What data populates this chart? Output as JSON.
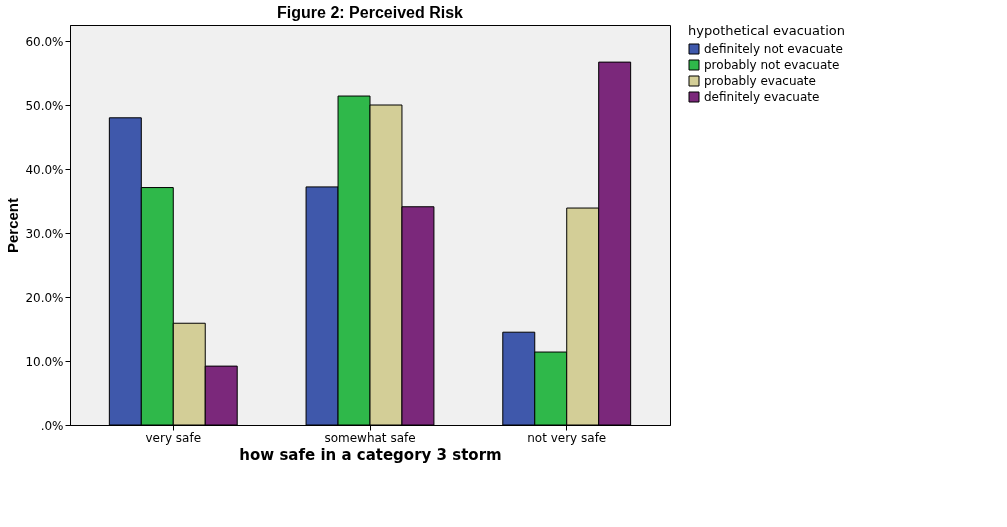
{
  "chart_data": {
    "type": "bar",
    "title": "Figure 2: Perceived Risk",
    "xlabel": "how safe in a category 3 storm",
    "ylabel": "Percent",
    "legend_title": "hypothetical evacuation",
    "categories": [
      "very safe",
      "somewhat safe",
      "not very safe"
    ],
    "series": [
      {
        "name": "definitely not evacuate",
        "color": "#3f58ab",
        "values": [
          48.0,
          37.2,
          14.5
        ]
      },
      {
        "name": "probably not evacuate",
        "color": "#2fb84a",
        "values": [
          37.1,
          51.4,
          11.4
        ]
      },
      {
        "name": "probably evacuate",
        "color": "#d3ce97",
        "values": [
          15.9,
          50.0,
          33.9
        ]
      },
      {
        "name": "definitely evacuate",
        "color": "#7b287b",
        "values": [
          9.2,
          34.1,
          56.7
        ]
      }
    ],
    "ylim": [
      0,
      62.5
    ],
    "yticks": [
      {
        "value": 0,
        "label": ".0%"
      },
      {
        "value": 10,
        "label": "10.0%"
      },
      {
        "value": 20,
        "label": "20.0%"
      },
      {
        "value": 30,
        "label": "30.0%"
      },
      {
        "value": 40,
        "label": "40.0%"
      },
      {
        "value": 50,
        "label": "50.0%"
      },
      {
        "value": 60,
        "label": "60.0%"
      }
    ],
    "grid": false,
    "legend": "top right"
  }
}
